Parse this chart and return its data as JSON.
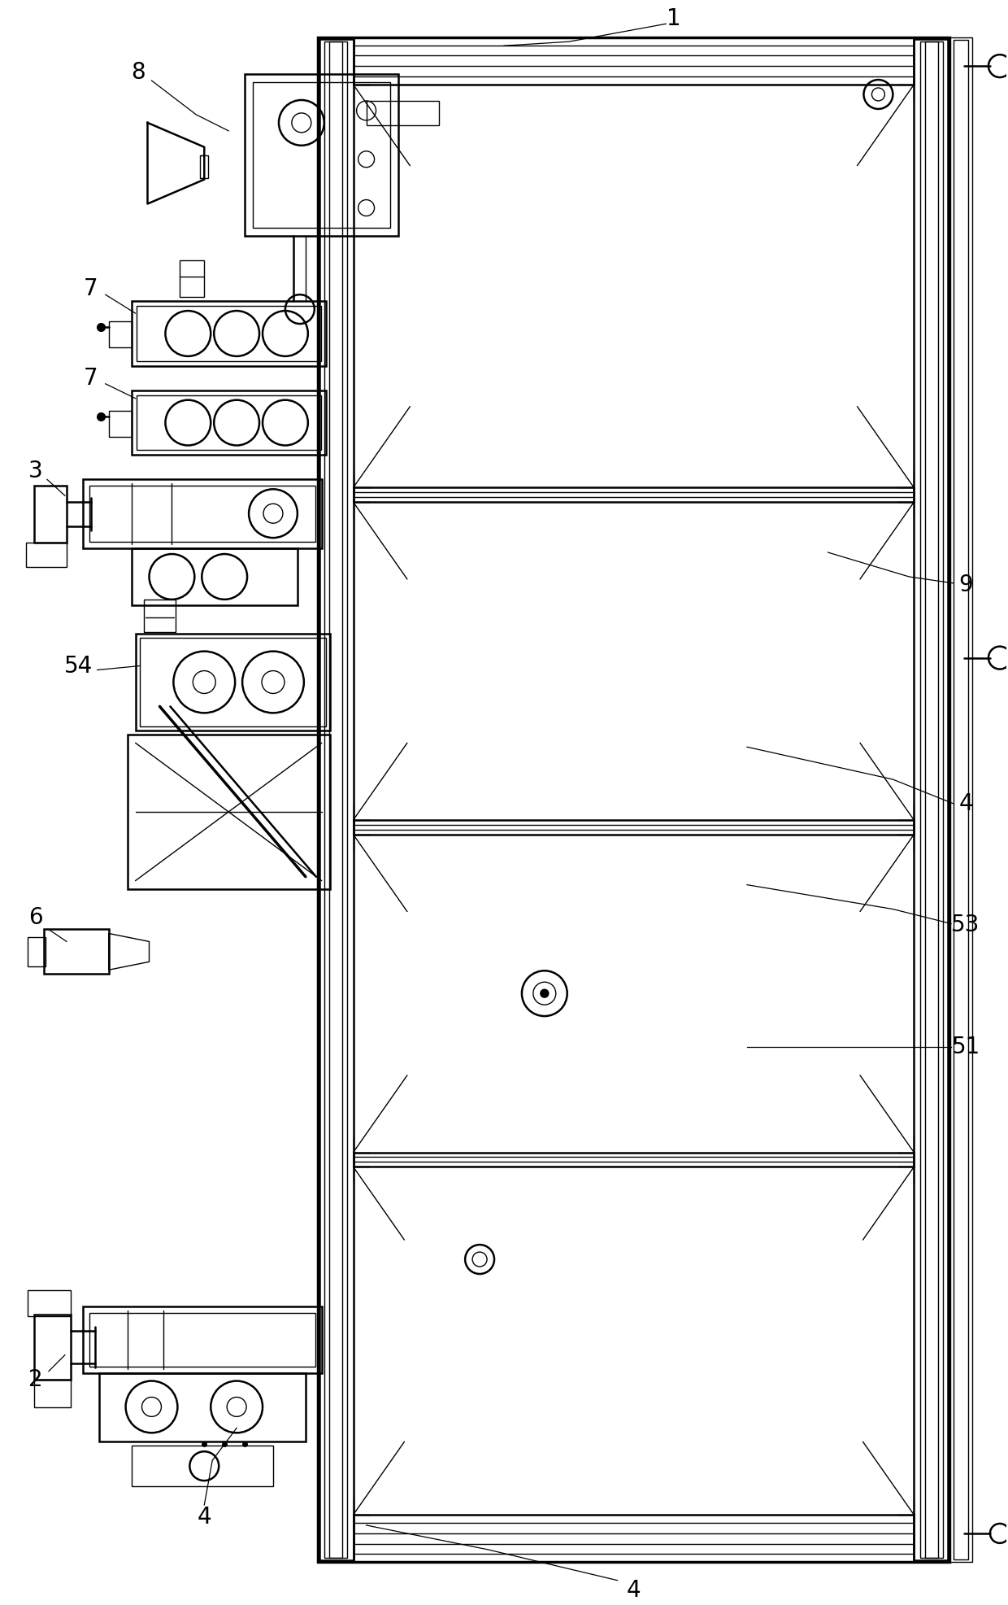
{
  "background_color": "#ffffff",
  "line_color": "#000000",
  "lw": 1.0,
  "lw2": 1.8,
  "lw3": 2.5,
  "fig_width": 12.4,
  "fig_height": 19.73,
  "label_fontsize": 20,
  "dpi": 100
}
